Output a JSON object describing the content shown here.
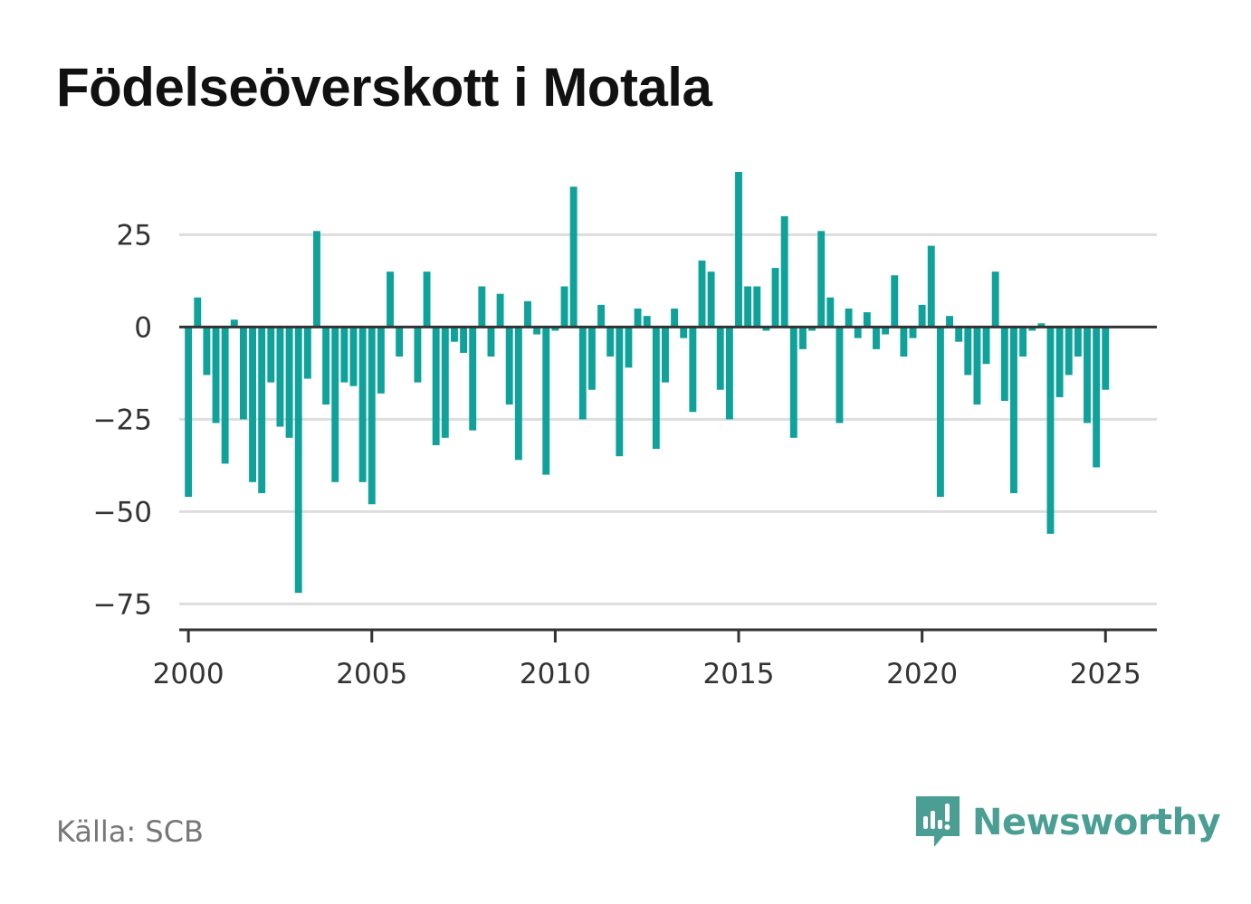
{
  "title": "Födelseöverskott i Motala",
  "source": "Källa: SCB",
  "brand": "Newsworthy",
  "colors": {
    "bar": "#0fa29a",
    "grid": "#dddddd",
    "zero": "#333333",
    "brand": "#4a9e93"
  },
  "chart_data": {
    "type": "bar",
    "title": "Födelseöverskott i Motala",
    "xlabel": "",
    "ylabel": "",
    "xlim": [
      1999.75,
      2026.4
    ],
    "ylim": [
      -82,
      42
    ],
    "yticks": [
      25,
      0,
      -25,
      -50,
      -75
    ],
    "ytick_labels": [
      "25",
      "0",
      "−25",
      "−50",
      "−75"
    ],
    "xticks": [
      2000,
      2005,
      2010,
      2015,
      2020,
      2025
    ],
    "xtick_labels": [
      "2000",
      "2005",
      "2010",
      "2015",
      "2020",
      "2025"
    ],
    "grid": true,
    "start_year": 2000,
    "start_quarter": 1,
    "values": [
      -46,
      8,
      -13,
      -26,
      -37,
      2,
      -25,
      -42,
      -45,
      -15,
      -27,
      -30,
      -72,
      -14,
      26,
      -21,
      -42,
      -15,
      -16,
      -42,
      -48,
      -18,
      15,
      -8,
      0,
      -15,
      15,
      -32,
      -30,
      -4,
      -7,
      -28,
      11,
      -8,
      9,
      -21,
      -36,
      7,
      -2,
      -40,
      -1,
      11,
      38,
      -25,
      -17,
      6,
      -8,
      -35,
      -11,
      5,
      3,
      -33,
      -15,
      5,
      -3,
      -23,
      18,
      15,
      -17,
      -25,
      42,
      11,
      11,
      -1,
      16,
      30,
      -30,
      -6,
      -1,
      26,
      8,
      -26,
      5,
      -3,
      4,
      -6,
      -2,
      14,
      -8,
      -3,
      6,
      22,
      -46,
      3,
      -4,
      -13,
      -21,
      -10,
      15,
      -20,
      -45,
      -8,
      -1,
      1,
      -56,
      -19,
      -13,
      -8,
      -26,
      -38,
      -17
    ]
  }
}
